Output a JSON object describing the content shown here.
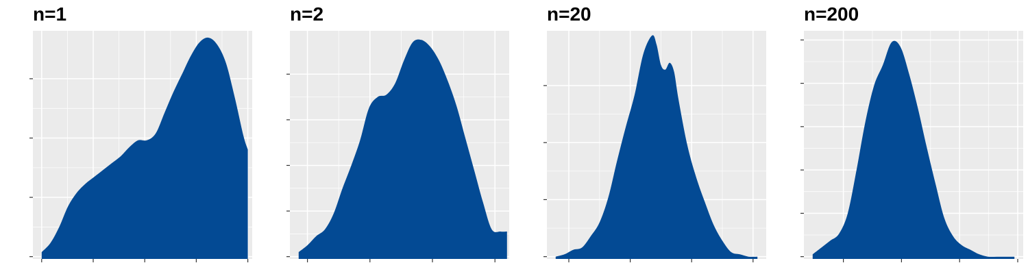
{
  "colors": {
    "fill": "#034a94",
    "panel_background": "#ebebeb",
    "grid": "#ffffff",
    "tick": "#333333"
  },
  "chart_data": [
    {
      "type": "area",
      "title": "n=1",
      "xlabel": "",
      "ylabel": "",
      "xlim": [
        0,
        1.0
      ],
      "ylim": [
        0,
        1.0
      ],
      "x_ticks": [
        0.04,
        0.275,
        0.51,
        0.745,
        0.98
      ],
      "y_ticks": [
        0.01,
        0.27,
        0.53,
        0.79
      ],
      "grid": true,
      "density": {
        "x": [
          0.04,
          0.08,
          0.12,
          0.16,
          0.2,
          0.24,
          0.28,
          0.32,
          0.36,
          0.4,
          0.44,
          0.48,
          0.52,
          0.56,
          0.6,
          0.64,
          0.68,
          0.72,
          0.76,
          0.8,
          0.84,
          0.88,
          0.92,
          0.96,
          0.98
        ],
        "y": [
          0.03,
          0.07,
          0.14,
          0.23,
          0.29,
          0.33,
          0.36,
          0.39,
          0.42,
          0.45,
          0.49,
          0.52,
          0.52,
          0.55,
          0.64,
          0.73,
          0.81,
          0.89,
          0.95,
          0.97,
          0.94,
          0.86,
          0.71,
          0.54,
          0.48
        ]
      }
    },
    {
      "type": "area",
      "title": "n=2",
      "xlabel": "",
      "ylabel": "",
      "xlim": [
        0,
        1.0
      ],
      "ylim": [
        0,
        1.0
      ],
      "x_ticks": [
        0.08,
        0.365,
        0.65,
        0.935
      ],
      "y_ticks": [
        0.01,
        0.21,
        0.41,
        0.61,
        0.81
      ],
      "grid": true,
      "density": {
        "x": [
          0.04,
          0.08,
          0.12,
          0.16,
          0.2,
          0.24,
          0.28,
          0.32,
          0.36,
          0.4,
          0.44,
          0.48,
          0.52,
          0.56,
          0.6,
          0.64,
          0.68,
          0.72,
          0.76,
          0.8,
          0.84,
          0.88,
          0.92,
          0.96,
          0.99
        ],
        "y": [
          0.03,
          0.06,
          0.1,
          0.13,
          0.2,
          0.31,
          0.41,
          0.52,
          0.66,
          0.71,
          0.72,
          0.77,
          0.87,
          0.95,
          0.96,
          0.93,
          0.87,
          0.78,
          0.67,
          0.53,
          0.39,
          0.25,
          0.13,
          0.12,
          0.12
        ]
      }
    },
    {
      "type": "area",
      "title": "n=20",
      "xlabel": "",
      "ylabel": "",
      "xlim": [
        0,
        1.0
      ],
      "ylim": [
        0,
        1.0
      ],
      "x_ticks": [
        0.1,
        0.38,
        0.66,
        0.94
      ],
      "y_ticks": [
        0.01,
        0.26,
        0.51,
        0.76
      ],
      "grid": true,
      "density": {
        "x": [
          0.04,
          0.08,
          0.12,
          0.16,
          0.2,
          0.24,
          0.28,
          0.32,
          0.36,
          0.4,
          0.44,
          0.48,
          0.5,
          0.52,
          0.54,
          0.56,
          0.58,
          0.6,
          0.64,
          0.68,
          0.72,
          0.76,
          0.8,
          0.84,
          0.88,
          0.92,
          0.96
        ],
        "y": [
          0.01,
          0.02,
          0.04,
          0.05,
          0.1,
          0.16,
          0.27,
          0.43,
          0.58,
          0.72,
          0.9,
          0.98,
          0.94,
          0.85,
          0.83,
          0.86,
          0.82,
          0.7,
          0.5,
          0.36,
          0.25,
          0.15,
          0.08,
          0.03,
          0.02,
          0.01,
          0.01
        ]
      }
    },
    {
      "type": "area",
      "title": "n=200",
      "xlabel": "",
      "ylabel": "",
      "xlim": [
        0,
        1.0
      ],
      "ylim": [
        0,
        1.0
      ],
      "x_ticks": [
        0.18,
        0.445,
        0.71,
        0.975
      ],
      "y_ticks": [
        0.01,
        0.2,
        0.39,
        0.58,
        0.77,
        0.96
      ],
      "grid": true,
      "density": {
        "x": [
          0.04,
          0.08,
          0.12,
          0.16,
          0.2,
          0.24,
          0.28,
          0.32,
          0.36,
          0.4,
          0.44,
          0.48,
          0.52,
          0.56,
          0.6,
          0.64,
          0.68,
          0.72,
          0.76,
          0.8,
          0.84,
          0.88,
          0.92,
          0.96
        ],
        "y": [
          0.02,
          0.05,
          0.08,
          0.11,
          0.2,
          0.39,
          0.6,
          0.76,
          0.85,
          0.95,
          0.93,
          0.81,
          0.66,
          0.49,
          0.33,
          0.18,
          0.1,
          0.06,
          0.04,
          0.02,
          0.01,
          0.01,
          0.01,
          0.01
        ]
      }
    }
  ]
}
